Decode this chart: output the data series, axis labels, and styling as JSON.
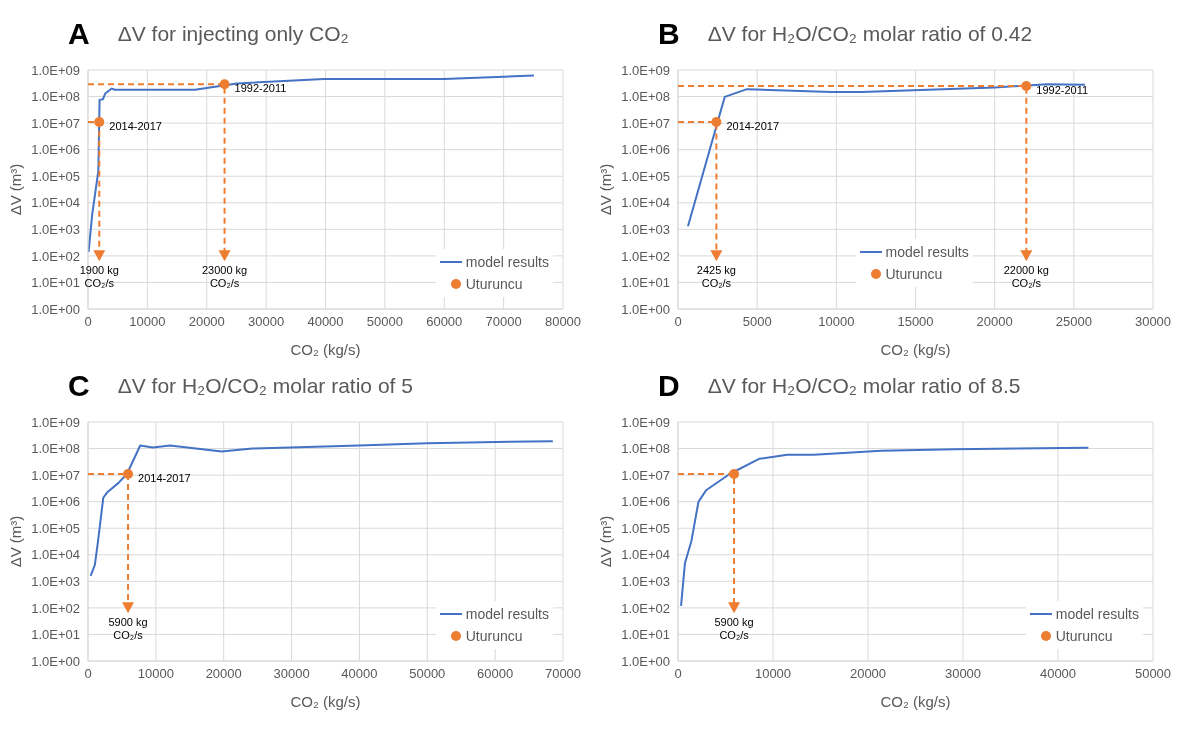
{
  "chart_data": [
    {
      "type": "line",
      "title": "ΔV for injecting only CO₂",
      "xlabel": "CO₂ (kg/s)",
      "ylabel": "ΔV (m³)",
      "log": "y",
      "grid": true,
      "legend": "bottom right",
      "xlim": [
        0,
        80000
      ],
      "xticks": [
        0,
        10000,
        20000,
        30000,
        40000,
        50000,
        60000,
        70000,
        80000
      ],
      "ylim": [
        1,
        1000000000
      ],
      "yticks": [
        {
          "value": 1,
          "label": "1.0E+00"
        },
        {
          "value": 10,
          "label": "1.0E+01"
        },
        {
          "value": 100,
          "label": "1.0E+02"
        },
        {
          "value": 1000,
          "label": "1.0E+03"
        },
        {
          "value": 10000,
          "label": "1.0E+04"
        },
        {
          "value": 100000,
          "label": "1.0E+05"
        },
        {
          "value": 1000000,
          "label": "1.0E+06"
        },
        {
          "value": 10000000,
          "label": "1.0E+07"
        },
        {
          "value": 100000000,
          "label": "1.0E+08"
        },
        {
          "value": 1000000000,
          "label": "1.0E+09"
        }
      ],
      "series": [
        {
          "name": "model results",
          "color": "#4472c4",
          "x": [
            100,
            700,
            1740,
            1950,
            2500,
            2900,
            4000,
            4500,
            18000,
            25100,
            39750,
            60000,
            75100
          ],
          "values": [
            140,
            3500,
            160000,
            75000000,
            79000000,
            130000000,
            200000000,
            180000000,
            180000000,
            310000000,
            460000000,
            460000000,
            620000000
          ]
        },
        {
          "name": "Uturuncu",
          "type": "scatter",
          "color": "#ed7d31",
          "x": [
            1900,
            23000
          ],
          "values": [
            11000000,
            290000000
          ]
        }
      ],
      "annotations": [
        "A",
        {
          "text": "2014-2017",
          "x": 1900,
          "y": 11000000
        },
        {
          "text": "1992-2011",
          "x": 23000,
          "y": 290000000
        },
        "1900 kg CO₂/s",
        "23000 kg CO₂/s"
      ]
    },
    {
      "type": "line",
      "title": "ΔV for H₂O/CO₂ molar ratio of 0.42",
      "xlabel": "CO₂ (kg/s)",
      "ylabel": "ΔV (m³)",
      "log": "y",
      "grid": true,
      "legend": "bottom",
      "xlim": [
        0,
        30000
      ],
      "xticks": [
        0,
        5000,
        10000,
        15000,
        20000,
        25000,
        30000
      ],
      "ylim": [
        1,
        1000000000
      ],
      "yticks": [
        {
          "value": 1,
          "label": "1.0E+00"
        },
        {
          "value": 10,
          "label": "1.0E+01"
        },
        {
          "value": 100,
          "label": "1.0E+02"
        },
        {
          "value": 1000,
          "label": "1.0E+03"
        },
        {
          "value": 10000,
          "label": "1.0E+04"
        },
        {
          "value": 100000,
          "label": "1.0E+05"
        },
        {
          "value": 1000000,
          "label": "1.0E+06"
        },
        {
          "value": 10000000,
          "label": "1.0E+07"
        },
        {
          "value": 100000000,
          "label": "1.0E+08"
        },
        {
          "value": 1000000000,
          "label": "1.0E+09"
        }
      ],
      "series": [
        {
          "name": "model results",
          "color": "#4472c4",
          "x": [
            630,
            2950,
            4360,
            9700,
            11600,
            20000,
            23300,
            25700
          ],
          "values": [
            1300,
            97000000,
            190000000,
            150000000,
            150000000,
            220000000,
            290000000,
            280000000
          ]
        },
        {
          "name": "Uturuncu",
          "type": "scatter",
          "color": "#ed7d31",
          "x": [
            2425,
            22000
          ],
          "values": [
            11000000,
            250000000
          ]
        }
      ],
      "annotations": [
        "B",
        {
          "text": "2014-2017",
          "x": 2425,
          "y": 11000000
        },
        {
          "text": "1992-2011",
          "x": 22000,
          "y": 250000000
        },
        "2425 kg CO₂/s",
        "22000 kg CO₂/s"
      ]
    },
    {
      "type": "line",
      "title": "ΔV for H₂O/CO₂ molar ratio of 5",
      "xlabel": "CO₂ (kg/s)",
      "ylabel": "ΔV (m³)",
      "log": "y",
      "grid": true,
      "legend": "bottom right",
      "xlim": [
        0,
        70000
      ],
      "xticks": [
        0,
        10000,
        20000,
        30000,
        40000,
        50000,
        60000,
        70000
      ],
      "ylim": [
        1,
        1000000000
      ],
      "yticks": [
        {
          "value": 1,
          "label": "1.0E+00"
        },
        {
          "value": 10,
          "label": "1.0E+01"
        },
        {
          "value": 100,
          "label": "1.0E+02"
        },
        {
          "value": 1000,
          "label": "1.0E+03"
        },
        {
          "value": 10000,
          "label": "1.0E+04"
        },
        {
          "value": 100000,
          "label": "1.0E+05"
        },
        {
          "value": 1000000,
          "label": "1.0E+06"
        },
        {
          "value": 10000000,
          "label": "1.0E+07"
        },
        {
          "value": 100000000,
          "label": "1.0E+08"
        },
        {
          "value": 1000000000,
          "label": "1.0E+09"
        }
      ],
      "series": [
        {
          "name": "model results",
          "color": "#4472c4",
          "x": [
            390,
            1010,
            1460,
            2250,
            2800,
            4500,
            5730,
            7700,
            9550,
            12100,
            19700,
            24200,
            29800,
            39900,
            50000,
            68500
          ],
          "values": [
            1600,
            4200,
            30000,
            1400000,
            2200000,
            5100000,
            11000000,
            130000000,
            110000000,
            130000000,
            77000000,
            100000000,
            110000000,
            130000000,
            160000000,
            190000000
          ]
        },
        {
          "name": "Uturuncu",
          "type": "scatter",
          "color": "#ed7d31",
          "x": [
            5900
          ],
          "values": [
            11000000
          ]
        }
      ],
      "annotations": [
        "C",
        {
          "text": "2014-2017",
          "x": 5900,
          "y": 11000000
        },
        "5900 kg CO₂/s"
      ]
    },
    {
      "type": "line",
      "title": "ΔV for H₂O/CO₂ molar ratio of 8.5",
      "xlabel": "CO₂ (kg/s)",
      "ylabel": "ΔV (m³)",
      "log": "y",
      "grid": true,
      "legend": "bottom right",
      "xlim": [
        0,
        50000
      ],
      "xticks": [
        0,
        10000,
        20000,
        30000,
        40000,
        50000
      ],
      "ylim": [
        1,
        1000000000
      ],
      "yticks": [
        {
          "value": 1,
          "label": "1.0E+00"
        },
        {
          "value": 10,
          "label": "1.0E+01"
        },
        {
          "value": 100,
          "label": "1.0E+02"
        },
        {
          "value": 1000,
          "label": "1.0E+03"
        },
        {
          "value": 10000,
          "label": "1.0E+04"
        },
        {
          "value": 100000,
          "label": "1.0E+05"
        },
        {
          "value": 1000000,
          "label": "1.0E+06"
        },
        {
          "value": 10000000,
          "label": "1.0E+07"
        },
        {
          "value": 100000000,
          "label": "1.0E+08"
        },
        {
          "value": 1000000000,
          "label": "1.0E+09"
        }
      ],
      "series": [
        {
          "name": "model results",
          "color": "#4472c4",
          "x": [
            320,
            730,
            1420,
            2150,
            2960,
            5430,
            8540,
            11500,
            14300,
            21400,
            29100,
            43200
          ],
          "values": [
            120,
            4800,
            34000,
            980000,
            2700000,
            11000000,
            41000000,
            58000000,
            58000000,
            82000000,
            94000000,
            107000000
          ]
        },
        {
          "name": "Uturuncu",
          "type": "scatter",
          "color": "#ed7d31",
          "x": [
            5900
          ],
          "values": [
            11000000
          ]
        }
      ],
      "annotations": [
        "D",
        "5900 kg CO₂/s"
      ]
    }
  ]
}
